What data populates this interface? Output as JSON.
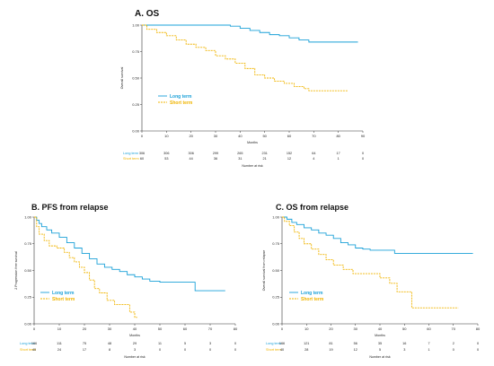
{
  "colors": {
    "long": "#1aa0d8",
    "short": "#f0b400",
    "axis": "#333333"
  },
  "chart_data": [
    {
      "type": "line",
      "title": "A. OS",
      "xlabel": "Months",
      "ylabel": "Overall survival",
      "xlim": [
        0,
        90
      ],
      "ylim": [
        0,
        1
      ],
      "xticks": [
        "0",
        "10",
        "20",
        "30",
        "40",
        "50",
        "60",
        "70",
        "80",
        "90"
      ],
      "yticks": [
        "0.00",
        "0.25",
        "0.50",
        "0.75",
        "1.00"
      ],
      "legend_position": "center-left",
      "series": [
        {
          "name": "Long term",
          "style": "solid",
          "points": [
            [
              0,
              1
            ],
            [
              20,
              1
            ],
            [
              32,
              1
            ],
            [
              36,
              0.99
            ],
            [
              40,
              0.97
            ],
            [
              44,
              0.95
            ],
            [
              48,
              0.93
            ],
            [
              52,
              0.91
            ],
            [
              56,
              0.9
            ],
            [
              60,
              0.88
            ],
            [
              64,
              0.86
            ],
            [
              68,
              0.84
            ],
            [
              72,
              0.84
            ],
            [
              80,
              0.84
            ],
            [
              88,
              0.84
            ]
          ]
        },
        {
          "name": "Short term",
          "style": "dashed",
          "points": [
            [
              0,
              1
            ],
            [
              2,
              0.96
            ],
            [
              6,
              0.93
            ],
            [
              10,
              0.9
            ],
            [
              14,
              0.86
            ],
            [
              18,
              0.82
            ],
            [
              22,
              0.79
            ],
            [
              26,
              0.76
            ],
            [
              30,
              0.71
            ],
            [
              34,
              0.68
            ],
            [
              38,
              0.64
            ],
            [
              42,
              0.59
            ],
            [
              46,
              0.53
            ],
            [
              50,
              0.5
            ],
            [
              54,
              0.47
            ],
            [
              58,
              0.45
            ],
            [
              62,
              0.42
            ],
            [
              66,
              0.4
            ],
            [
              68,
              0.38
            ],
            [
              72,
              0.38
            ],
            [
              80,
              0.38
            ],
            [
              84,
              0.38
            ]
          ]
        }
      ],
      "risk_table": {
        "label": "Number at risk",
        "rows": [
          {
            "name": "Long term",
            "values": [
              "306",
              "306",
              "306",
              "299",
              "265",
              "231",
              "152",
              "64",
              "17",
              "0"
            ]
          },
          {
            "name": "Short term",
            "values": [
              "60",
              "53",
              "44",
              "36",
              "31",
              "21",
              "12",
              "4",
              "1",
              "0"
            ]
          }
        ]
      }
    },
    {
      "type": "line",
      "title": "B. PFS from relapse",
      "xlabel": "Months",
      "ylabel": "2 Progression free survival",
      "xlim": [
        0,
        80
      ],
      "ylim": [
        0,
        1
      ],
      "xticks": [
        "0",
        "10",
        "20",
        "30",
        "40",
        "50",
        "60",
        "70",
        "80"
      ],
      "yticks": [
        "0.00",
        "0.25",
        "0.50",
        "0.75",
        "1.00"
      ],
      "legend_position": "bottom-left",
      "series": [
        {
          "name": "Long term",
          "style": "solid",
          "points": [
            [
              0,
              1
            ],
            [
              1,
              0.97
            ],
            [
              2,
              0.94
            ],
            [
              3,
              0.91
            ],
            [
              5,
              0.88
            ],
            [
              7,
              0.85
            ],
            [
              10,
              0.81
            ],
            [
              13,
              0.76
            ],
            [
              16,
              0.71
            ],
            [
              19,
              0.66
            ],
            [
              22,
              0.61
            ],
            [
              25,
              0.56
            ],
            [
              28,
              0.53
            ],
            [
              31,
              0.51
            ],
            [
              34,
              0.49
            ],
            [
              37,
              0.46
            ],
            [
              40,
              0.44
            ],
            [
              43,
              0.42
            ],
            [
              46,
              0.4
            ],
            [
              50,
              0.39
            ],
            [
              64,
              0.39
            ],
            [
              64,
              0.31
            ],
            [
              70,
              0.31
            ],
            [
              76,
              0.31
            ]
          ]
        },
        {
          "name": "Short term",
          "style": "dashed",
          "points": [
            [
              0,
              1
            ],
            [
              1,
              0.91
            ],
            [
              2,
              0.84
            ],
            [
              4,
              0.78
            ],
            [
              6,
              0.73
            ],
            [
              9,
              0.71
            ],
            [
              12,
              0.67
            ],
            [
              14,
              0.62
            ],
            [
              16,
              0.58
            ],
            [
              18,
              0.53
            ],
            [
              20,
              0.48
            ],
            [
              22,
              0.41
            ],
            [
              24,
              0.33
            ],
            [
              26,
              0.29
            ],
            [
              29,
              0.22
            ],
            [
              32,
              0.18
            ],
            [
              38,
              0.18
            ],
            [
              38,
              0.11
            ],
            [
              40,
              0.06
            ],
            [
              41,
              0.06
            ]
          ]
        }
      ],
      "risk_table": {
        "label": "Number at risk",
        "rows": [
          {
            "name": "Long term",
            "values": [
              "166",
              "111",
              "75",
              "48",
              "29",
              "11",
              "5",
              "3",
              "0"
            ]
          },
          {
            "name": "Short term",
            "values": [
              "40",
              "24",
              "17",
              "8",
              "3",
              "0",
              "0",
              "0",
              "0"
            ]
          }
        ]
      }
    },
    {
      "type": "line",
      "title": "C. OS from relapse",
      "xlabel": "Months",
      "ylabel": "Overall survival from relapse",
      "xlim": [
        0,
        80
      ],
      "ylim": [
        0,
        1
      ],
      "xticks": [
        "0",
        "10",
        "20",
        "30",
        "40",
        "50",
        "60",
        "70",
        "80"
      ],
      "yticks": [
        "0.00",
        "0.25",
        "0.50",
        "0.75",
        "1.00"
      ],
      "legend_position": "bottom-left",
      "series": [
        {
          "name": "Long term",
          "style": "solid",
          "points": [
            [
              0,
              1
            ],
            [
              2,
              0.98
            ],
            [
              4,
              0.95
            ],
            [
              6,
              0.93
            ],
            [
              9,
              0.9
            ],
            [
              12,
              0.88
            ],
            [
              15,
              0.85
            ],
            [
              18,
              0.83
            ],
            [
              21,
              0.8
            ],
            [
              24,
              0.76
            ],
            [
              27,
              0.74
            ],
            [
              30,
              0.71
            ],
            [
              33,
              0.7
            ],
            [
              36,
              0.69
            ],
            [
              40,
              0.69
            ],
            [
              46,
              0.69
            ],
            [
              46,
              0.66
            ],
            [
              60,
              0.66
            ],
            [
              78,
              0.66
            ]
          ]
        },
        {
          "name": "Short term",
          "style": "dashed",
          "points": [
            [
              0,
              1
            ],
            [
              1,
              0.96
            ],
            [
              3,
              0.92
            ],
            [
              5,
              0.86
            ],
            [
              7,
              0.8
            ],
            [
              9,
              0.75
            ],
            [
              12,
              0.7
            ],
            [
              15,
              0.65
            ],
            [
              18,
              0.6
            ],
            [
              21,
              0.55
            ],
            [
              25,
              0.51
            ],
            [
              29,
              0.47
            ],
            [
              35,
              0.47
            ],
            [
              40,
              0.43
            ],
            [
              44,
              0.38
            ],
            [
              47,
              0.3
            ],
            [
              50,
              0.3
            ],
            [
              53,
              0.15
            ],
            [
              60,
              0.15
            ],
            [
              72,
              0.15
            ]
          ]
        }
      ],
      "risk_table": {
        "label": "Number at risk",
        "rows": [
          {
            "name": "Long term",
            "values": [
              "166",
              "121",
              "81",
              "56",
              "35",
              "16",
              "7",
              "2",
              "0"
            ]
          },
          {
            "name": "Short term",
            "values": [
              "40",
              "28",
              "19",
              "12",
              "5",
              "3",
              "1",
              "0",
              "0"
            ]
          }
        ]
      }
    }
  ]
}
